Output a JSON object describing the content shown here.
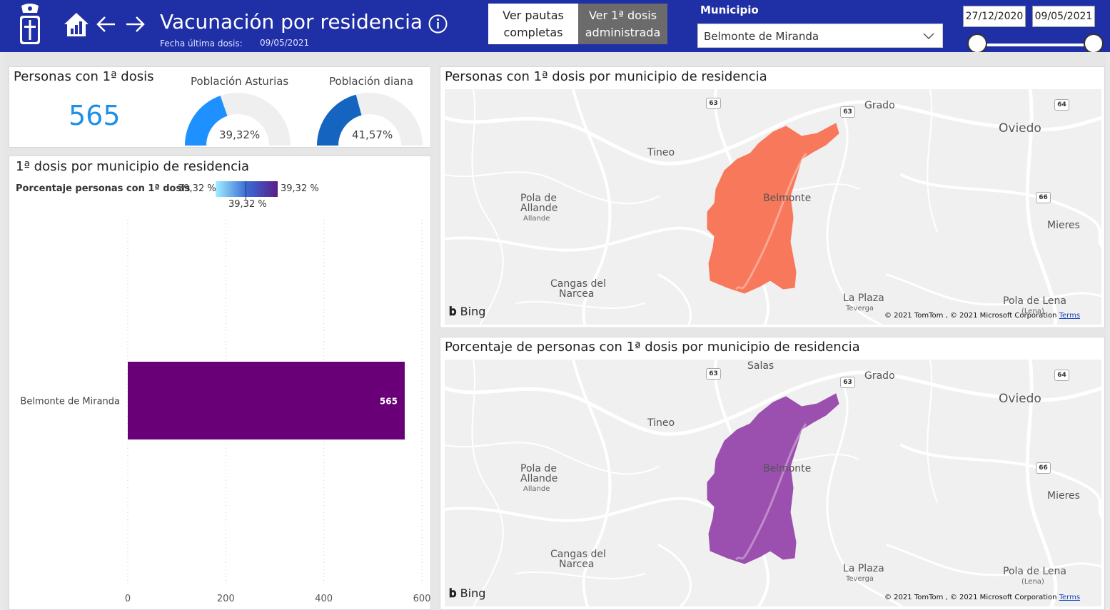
{
  "header": {
    "title": "Vacunación por residencia",
    "last_dose_label": "Fecha última dosis:",
    "last_dose_date": "09/05/2021",
    "btn_full": "Ver pautas completas",
    "btn_first": "Ver 1ª dosis administrada",
    "municipio_label": "Municipio",
    "municipio_value": "Belmonte de Miranda",
    "date_start": "27/12/2020",
    "date_end": "09/05/2021",
    "accent": "#1f2fa6"
  },
  "kpi": {
    "title": "Personas con 1ª dosis",
    "value": "565"
  },
  "gauges": [
    {
      "title": "Población Asturias",
      "label": "39,32%",
      "value": 39.32,
      "color": "#1e90ff"
    },
    {
      "title": "Población diana",
      "label": "41,57%",
      "value": 41.57,
      "color": "#1565c0"
    }
  ],
  "barpanel": {
    "title": "1ª dosis por municipio de residencia",
    "legend_title": "Porcentaje personas con 1ª dosis",
    "legend_min": "39,32 %",
    "legend_max": "39,32 %",
    "legend_mid": "39,32 %"
  },
  "chart_data": {
    "type": "bar",
    "orientation": "horizontal",
    "categories": [
      "Belmonte de Miranda"
    ],
    "values": [
      565
    ],
    "data_labels": [
      "565"
    ],
    "xlim": [
      0,
      600
    ],
    "xticks": [
      "0",
      "200",
      "400",
      "600"
    ],
    "bar_color": "#6a0078",
    "grid": true
  },
  "map1": {
    "title": "Personas con 1ª dosis por municipio de residencia",
    "fill": "#f7785a"
  },
  "map2": {
    "title": "Porcentaje de personas con 1ª dosis por municipio de residencia",
    "fill": "#9b4fae"
  },
  "maps": {
    "labels": {
      "grado": "Grado",
      "oviedo": "Oviedo",
      "tineo": "Tineo",
      "pola_allande_1": "Pola de",
      "pola_allande_2": "Allande",
      "allande": "Allande",
      "belmonte": "Belmonte",
      "mieres": "Mieres",
      "cangas_1": "Cangas del",
      "cangas_2": "Narcea",
      "la_plaza": "La Plaza",
      "teverga": "Teverga",
      "pola_lena": "Pola de Lena",
      "lena": "(Lena)",
      "salas": "Salas"
    },
    "shields": {
      "s63": "63",
      "s64": "64",
      "s66": "66"
    },
    "bing": "Bing",
    "copyright": "© 2021 TomTom , © 2021 Microsoft Corporation",
    "terms": "Terms"
  }
}
